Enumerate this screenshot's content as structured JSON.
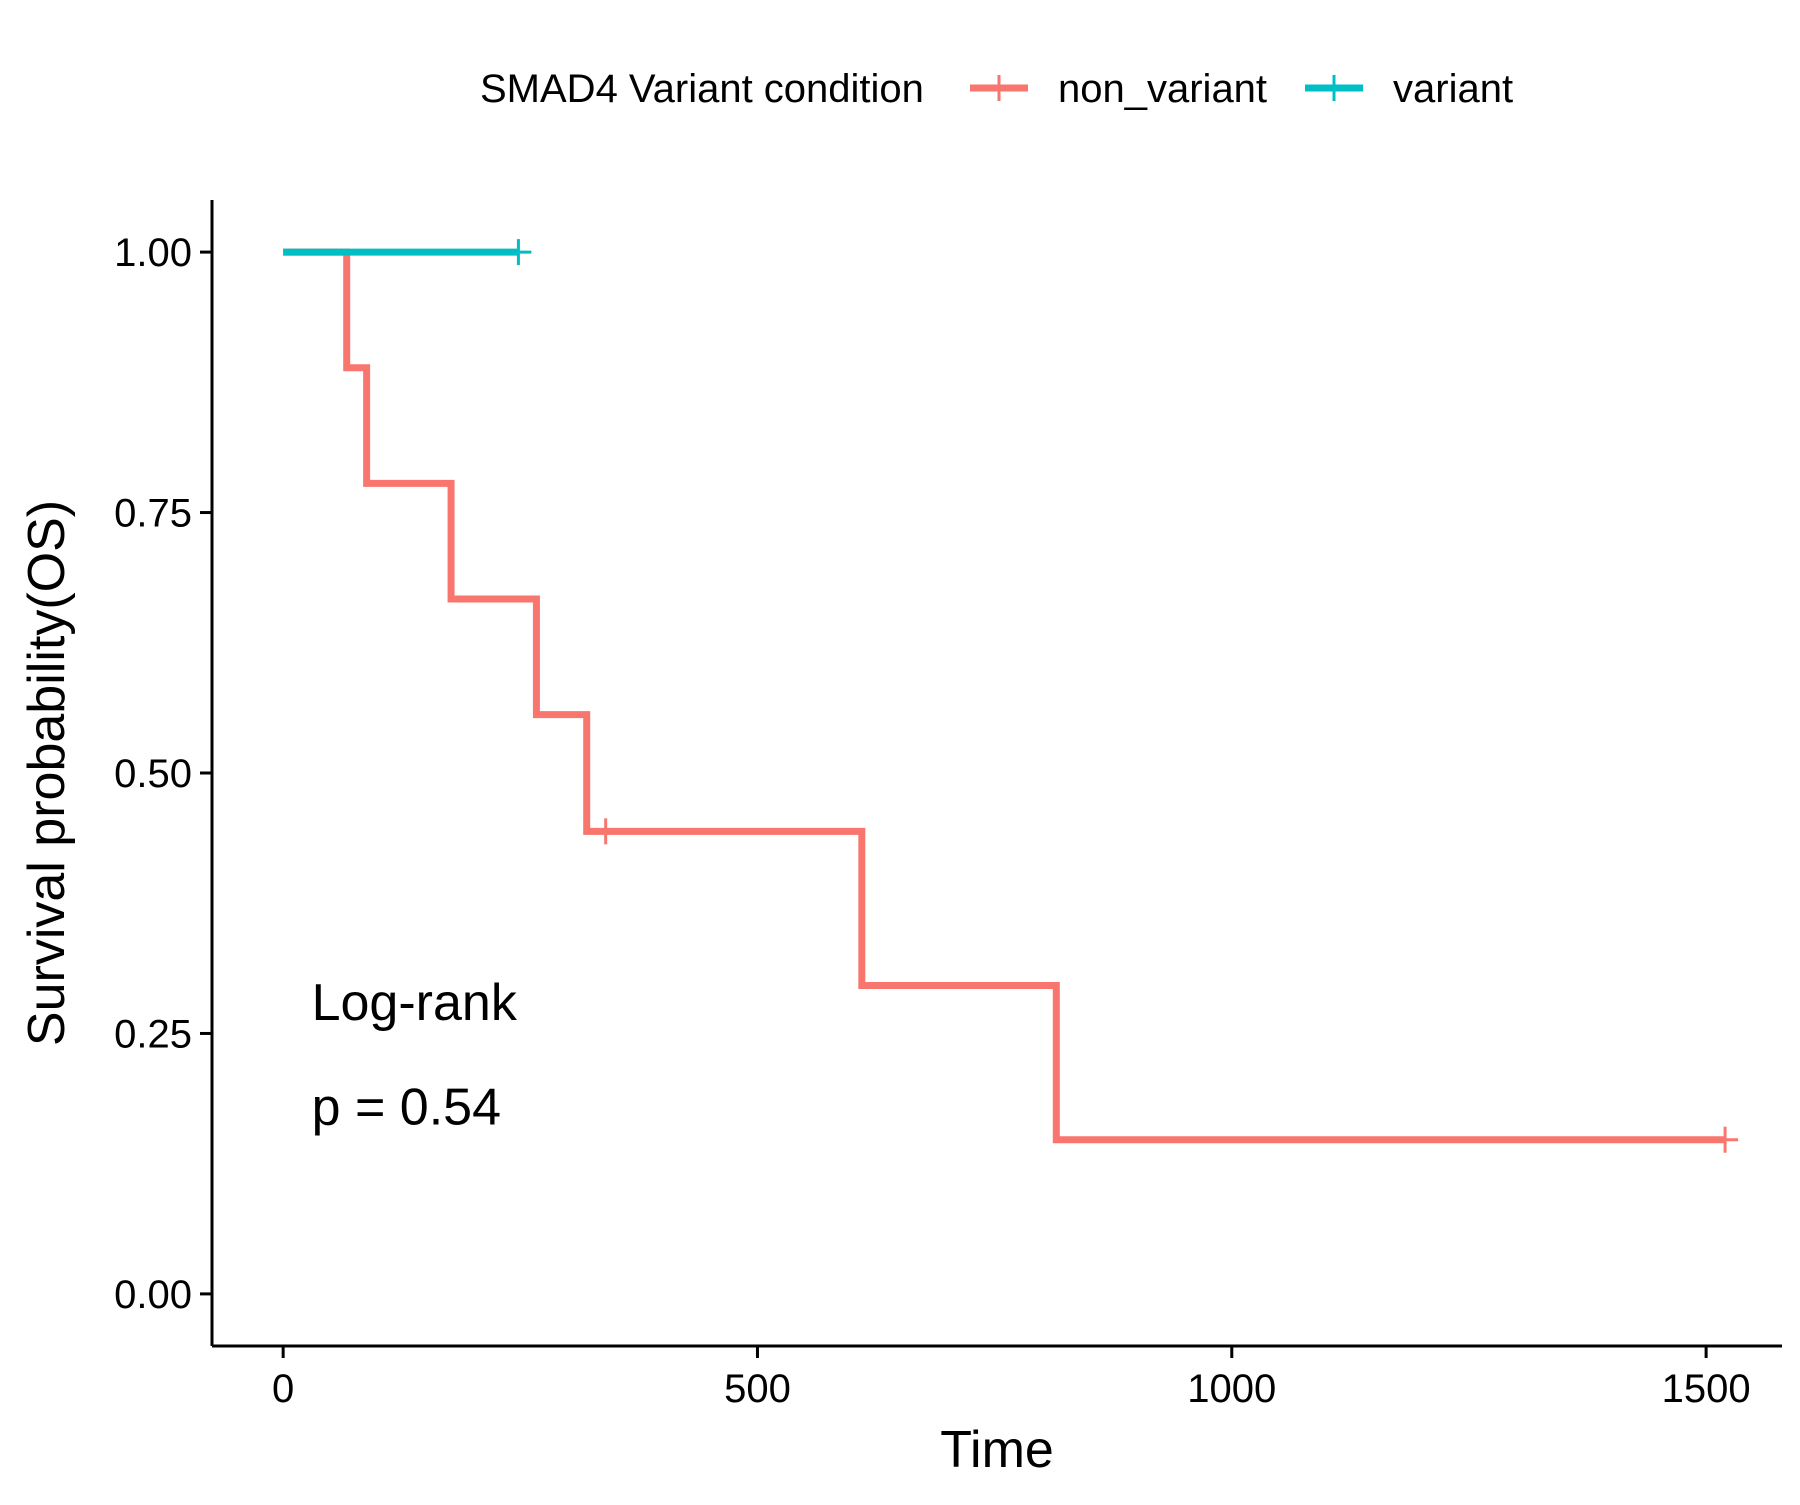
{
  "chart_data": {
    "type": "line",
    "title": "",
    "xlabel": "Time",
    "ylabel": "Survival probability(OS)",
    "xlim": [
      -75,
      1580
    ],
    "ylim": [
      -0.05,
      1.05
    ],
    "x_ticks": [
      0,
      500,
      1000,
      1500
    ],
    "x_tick_labels": [
      "0",
      "500",
      "1000",
      "1500"
    ],
    "y_ticks": [
      0,
      0.25,
      0.5,
      0.75,
      1.0
    ],
    "y_tick_labels": [
      "0.00",
      "0.25",
      "0.50",
      "0.75",
      "1.00"
    ],
    "grid": false,
    "legend": {
      "title": "SMAD4 Variant condition",
      "position": "top"
    },
    "series": [
      {
        "name": "non_variant",
        "color": "#F8766D",
        "step": true,
        "x": [
          0,
          67,
          67,
          88,
          88,
          177,
          177,
          267,
          267,
          320,
          320,
          610,
          610,
          815,
          815,
          1520
        ],
        "y": [
          1.0,
          1.0,
          0.889,
          0.889,
          0.778,
          0.778,
          0.667,
          0.667,
          0.556,
          0.556,
          0.444,
          0.444,
          0.296,
          0.296,
          0.148,
          0.148
        ],
        "censored": [
          {
            "x": 340,
            "y": 0.444
          },
          {
            "x": 1520,
            "y": 0.148
          }
        ]
      },
      {
        "name": "variant",
        "color": "#00BFC4",
        "step": true,
        "x": [
          0,
          248
        ],
        "y": [
          1.0,
          1.0
        ],
        "censored": [
          {
            "x": 248,
            "y": 1.0
          }
        ]
      }
    ],
    "annotations": [
      "Log-rank",
      "p = 0.54"
    ]
  }
}
